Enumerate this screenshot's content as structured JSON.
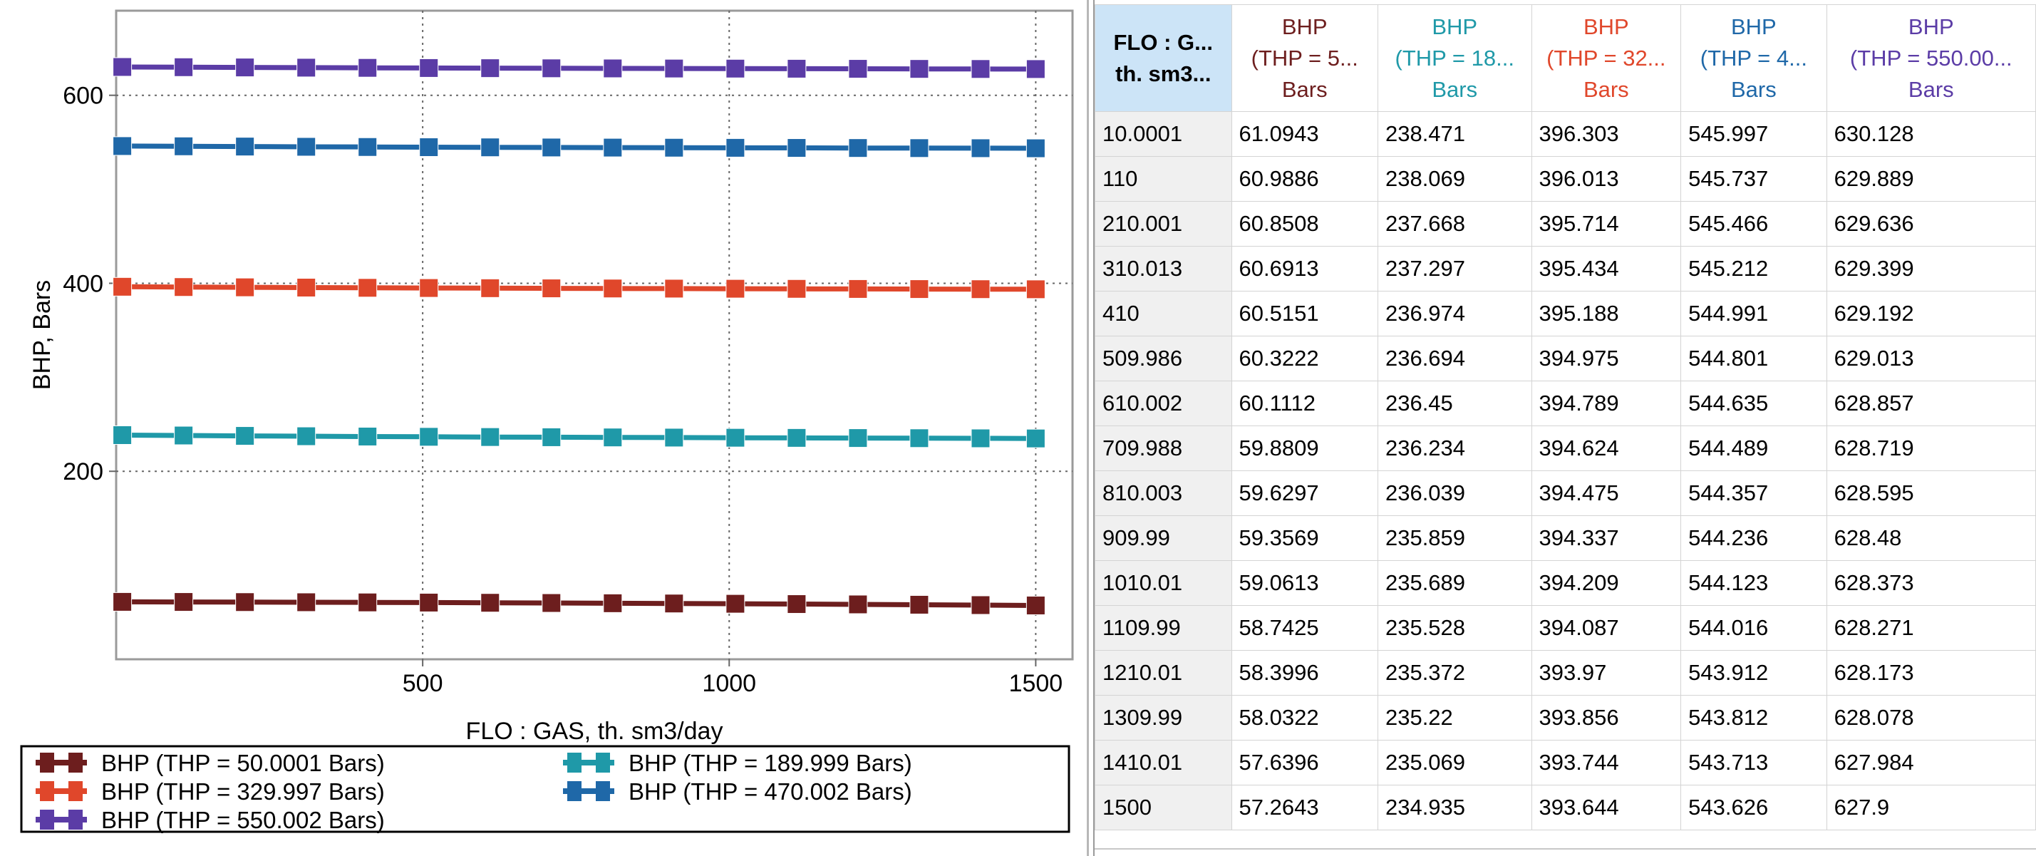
{
  "chart_data": {
    "type": "line",
    "xlabel": "FLO : GAS, th. sm3/day",
    "ylabel": "BHP, Bars",
    "xlim": [
      0,
      1560
    ],
    "ylim": [
      0,
      690
    ],
    "xticks": [
      500,
      1000,
      1500
    ],
    "yticks": [
      200,
      400,
      600
    ],
    "grid": true,
    "legend_position": "bottom",
    "x": [
      10.0001,
      110,
      210.001,
      310.013,
      410,
      509.986,
      610.002,
      709.988,
      810.003,
      909.99,
      1010.01,
      1109.99,
      1210.01,
      1309.99,
      1410.01,
      1500
    ],
    "series": [
      {
        "name": "BHP (THP = 50.0001 Bars)",
        "color": "#6d1e1e",
        "values": [
          61.0943,
          60.9886,
          60.8508,
          60.6913,
          60.5151,
          60.3222,
          60.1112,
          59.8809,
          59.6297,
          59.3569,
          59.0613,
          58.7425,
          58.3996,
          58.0322,
          57.6396,
          57.2643
        ]
      },
      {
        "name": "BHP (THP = 189.999 Bars)",
        "color": "#1f99a8",
        "values": [
          238.471,
          238.069,
          237.668,
          237.297,
          236.974,
          236.694,
          236.45,
          236.234,
          236.039,
          235.859,
          235.689,
          235.528,
          235.372,
          235.22,
          235.069,
          234.935
        ]
      },
      {
        "name": "BHP (THP = 329.997 Bars)",
        "color": "#e0472b",
        "values": [
          396.303,
          396.013,
          395.714,
          395.434,
          395.188,
          394.975,
          394.789,
          394.624,
          394.475,
          394.337,
          394.209,
          394.087,
          393.97,
          393.856,
          393.744,
          393.644
        ]
      },
      {
        "name": "BHP (THP = 470.002 Bars)",
        "color": "#1f68a8",
        "values": [
          545.997,
          545.737,
          545.466,
          545.212,
          544.991,
          544.801,
          544.635,
          544.489,
          544.357,
          544.236,
          544.123,
          544.016,
          543.912,
          543.812,
          543.713,
          543.626
        ]
      },
      {
        "name": "BHP (THP = 550.002 Bars)",
        "color": "#5b3ca6",
        "values": [
          630.128,
          629.889,
          629.636,
          629.399,
          629.192,
          629.013,
          628.857,
          628.719,
          628.595,
          628.48,
          628.373,
          628.271,
          628.173,
          628.078,
          627.984,
          627.9
        ]
      }
    ]
  },
  "table": {
    "first_header": {
      "line1": "FLO : G...",
      "line2": "th. sm3..."
    },
    "columns": [
      {
        "line1": "BHP",
        "line2": "(THP = 5...",
        "line3": "Bars",
        "color": "#6d1e1e"
      },
      {
        "line1": "BHP",
        "line2": "(THP = 18...",
        "line3": "Bars",
        "color": "#1f99a8"
      },
      {
        "line1": "BHP",
        "line2": "(THP = 32...",
        "line3": "Bars",
        "color": "#e0472b"
      },
      {
        "line1": "BHP",
        "line2": "(THP = 4...",
        "line3": "Bars",
        "color": "#1f68a8"
      },
      {
        "line1": "BHP",
        "line2": "(THP = 550.00...",
        "line3": "Bars",
        "color": "#5b3ca6"
      }
    ],
    "rows": [
      [
        "10.0001",
        "61.0943",
        "238.471",
        "396.303",
        "545.997",
        "630.128"
      ],
      [
        "110",
        "60.9886",
        "238.069",
        "396.013",
        "545.737",
        "629.889"
      ],
      [
        "210.001",
        "60.8508",
        "237.668",
        "395.714",
        "545.466",
        "629.636"
      ],
      [
        "310.013",
        "60.6913",
        "237.297",
        "395.434",
        "545.212",
        "629.399"
      ],
      [
        "410",
        "60.5151",
        "236.974",
        "395.188",
        "544.991",
        "629.192"
      ],
      [
        "509.986",
        "60.3222",
        "236.694",
        "394.975",
        "544.801",
        "629.013"
      ],
      [
        "610.002",
        "60.1112",
        "236.45",
        "394.789",
        "544.635",
        "628.857"
      ],
      [
        "709.988",
        "59.8809",
        "236.234",
        "394.624",
        "544.489",
        "628.719"
      ],
      [
        "810.003",
        "59.6297",
        "236.039",
        "394.475",
        "544.357",
        "628.595"
      ],
      [
        "909.99",
        "59.3569",
        "235.859",
        "394.337",
        "544.236",
        "628.48"
      ],
      [
        "1010.01",
        "59.0613",
        "235.689",
        "394.209",
        "544.123",
        "628.373"
      ],
      [
        "1109.99",
        "58.7425",
        "235.528",
        "394.087",
        "544.016",
        "628.271"
      ],
      [
        "1210.01",
        "58.3996",
        "235.372",
        "393.97",
        "543.912",
        "628.173"
      ],
      [
        "1309.99",
        "58.0322",
        "235.22",
        "393.856",
        "543.812",
        "628.078"
      ],
      [
        "1410.01",
        "57.6396",
        "235.069",
        "393.744",
        "543.713",
        "627.984"
      ],
      [
        "1500",
        "57.2643",
        "234.935",
        "393.644",
        "543.626",
        "627.9"
      ]
    ]
  }
}
